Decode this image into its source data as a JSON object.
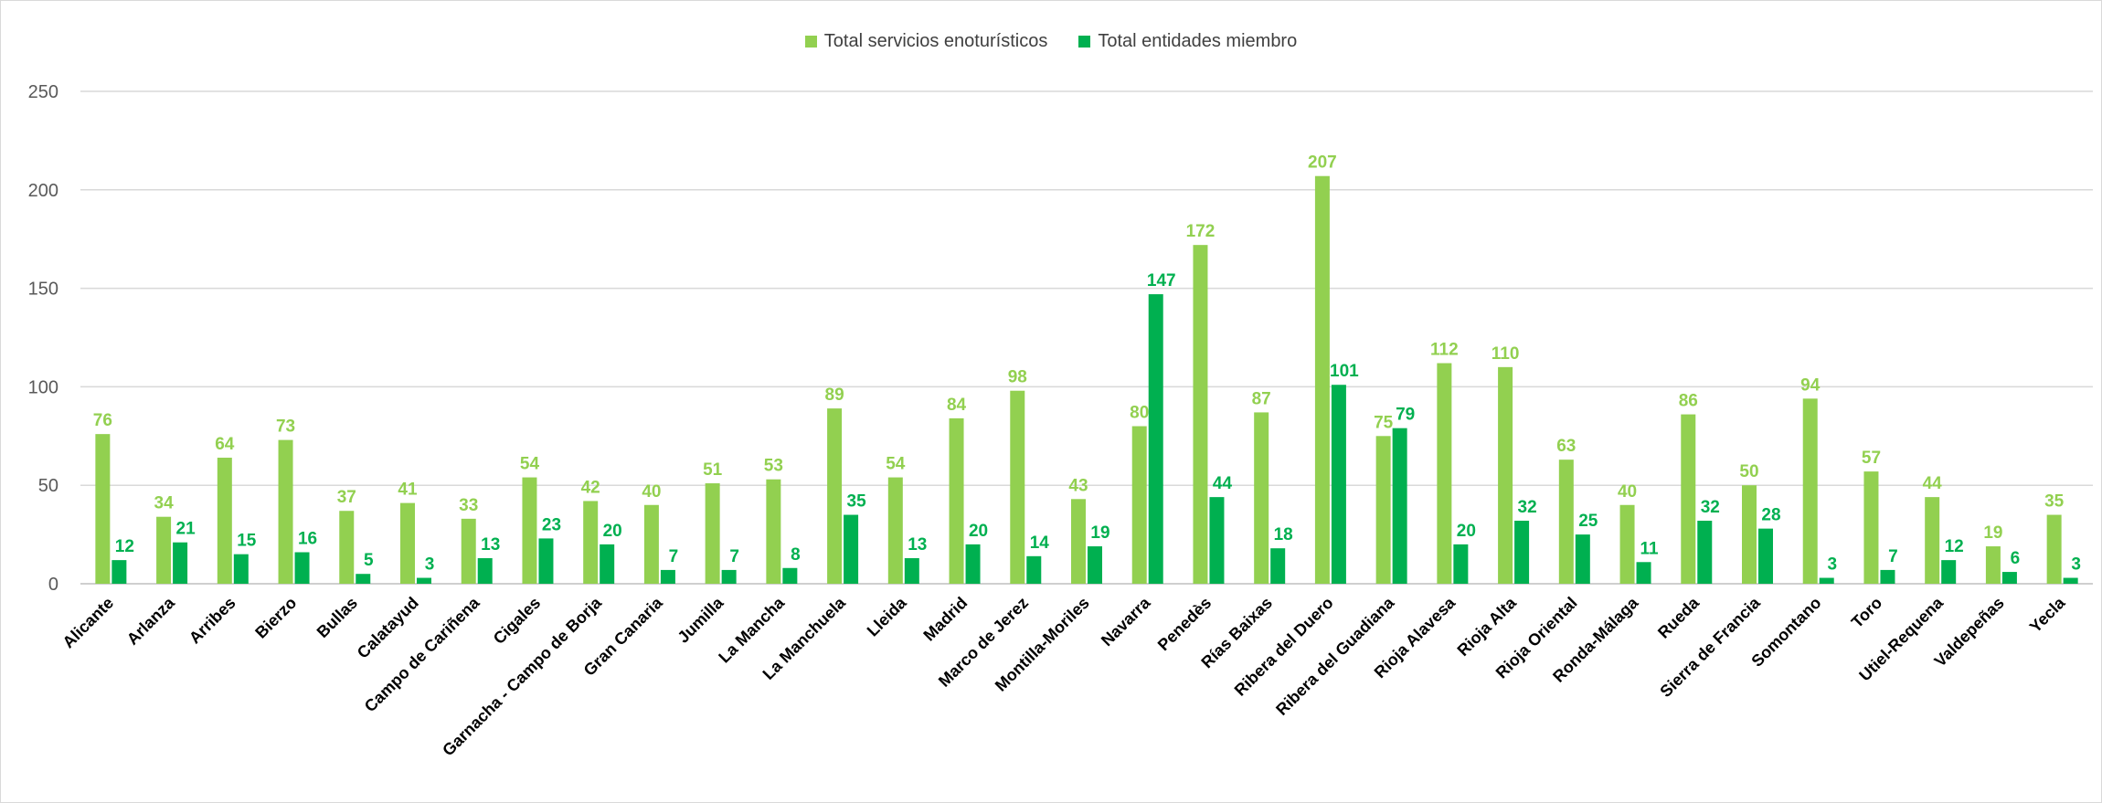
{
  "chart_data": {
    "type": "bar",
    "title": "",
    "xlabel": "",
    "ylabel": "",
    "ylim": [
      0,
      250
    ],
    "yticks": [
      0,
      50,
      100,
      150,
      200,
      250
    ],
    "grid": true,
    "legend_position": "top-center",
    "categories": [
      "Alicante",
      "Arlanza",
      "Arribes",
      "Bierzo",
      "Bullas",
      "Calatayud",
      "Campo de Cariñena",
      "Cigales",
      "Garnacha - Campo de Borja",
      "Gran Canaria",
      "Jumilla",
      "La Mancha",
      "La Manchuela",
      "Lleida",
      "Madrid",
      "Marco de Jerez",
      "Montilla-Moriles",
      "Navarra",
      "Penedès",
      "Rías Baixas",
      "Ribera del Duero",
      "Ribera del Guadiana",
      "Rioja Alavesa",
      "Rioja Alta",
      "Rioja Oriental",
      "Ronda-Málaga",
      "Rueda",
      "Sierra de Francia",
      "Somontano",
      "Toro",
      "Utiel-Requena",
      "Valdepeñas",
      "Yecla"
    ],
    "series": [
      {
        "name": "Total servicios enoturísticos",
        "color": "#92d050",
        "values": [
          76,
          34,
          64,
          73,
          37,
          41,
          33,
          54,
          42,
          40,
          51,
          53,
          89,
          54,
          84,
          98,
          43,
          80,
          172,
          87,
          207,
          75,
          112,
          110,
          63,
          40,
          86,
          50,
          94,
          57,
          44,
          19,
          35
        ]
      },
      {
        "name": "Total entidades miembro",
        "color": "#00b050",
        "values": [
          12,
          21,
          15,
          16,
          5,
          3,
          13,
          23,
          20,
          7,
          7,
          8,
          35,
          13,
          20,
          14,
          19,
          147,
          44,
          18,
          101,
          79,
          20,
          32,
          25,
          11,
          32,
          28,
          3,
          7,
          12,
          6,
          3
        ]
      }
    ]
  }
}
